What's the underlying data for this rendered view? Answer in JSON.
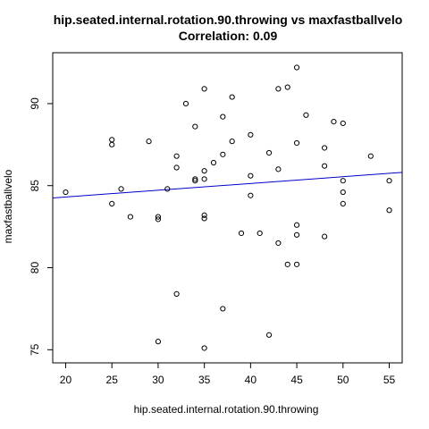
{
  "chart_data": {
    "type": "scatter",
    "title": "hip.seated.internal.rotation.90.throwing vs maxfastballvelo",
    "subtitle": "Correlation: 0.09",
    "xlabel": "hip.seated.internal.rotation.90.throwing",
    "ylabel": "maxfastballvelo",
    "xlim": [
      18.6,
      56.4
    ],
    "ylim": [
      74.2,
      93.1
    ],
    "x_ticks": [
      20,
      25,
      30,
      35,
      40,
      45,
      50,
      55
    ],
    "y_ticks": [
      75,
      80,
      85,
      90
    ],
    "grid": false,
    "colors": {
      "points": "#000000",
      "trend_line": "#0000cc",
      "frame": "#000000"
    },
    "trend_line": {
      "x": [
        18.6,
        56.4
      ],
      "y": [
        84.25,
        85.81
      ]
    },
    "points": [
      {
        "x": 20,
        "y": 84.6
      },
      {
        "x": 25,
        "y": 87.8
      },
      {
        "x": 25,
        "y": 87.5
      },
      {
        "x": 25,
        "y": 83.9
      },
      {
        "x": 26,
        "y": 84.8
      },
      {
        "x": 27,
        "y": 83.1
      },
      {
        "x": 29,
        "y": 87.7
      },
      {
        "x": 30,
        "y": 83.1
      },
      {
        "x": 30,
        "y": 82.95
      },
      {
        "x": 30,
        "y": 75.5
      },
      {
        "x": 31,
        "y": 84.8
      },
      {
        "x": 32,
        "y": 86.8
      },
      {
        "x": 32,
        "y": 86.1
      },
      {
        "x": 32,
        "y": 78.4
      },
      {
        "x": 33,
        "y": 90.0
      },
      {
        "x": 34,
        "y": 88.6
      },
      {
        "x": 34,
        "y": 85.4
      },
      {
        "x": 34,
        "y": 85.3
      },
      {
        "x": 35,
        "y": 90.9
      },
      {
        "x": 35,
        "y": 85.9
      },
      {
        "x": 35,
        "y": 85.4
      },
      {
        "x": 35,
        "y": 83.2
      },
      {
        "x": 35,
        "y": 83.0
      },
      {
        "x": 35,
        "y": 75.1
      },
      {
        "x": 36,
        "y": 86.4
      },
      {
        "x": 37,
        "y": 89.2
      },
      {
        "x": 37,
        "y": 86.9
      },
      {
        "x": 37,
        "y": 77.5
      },
      {
        "x": 38,
        "y": 90.4
      },
      {
        "x": 38,
        "y": 87.7
      },
      {
        "x": 39,
        "y": 82.1
      },
      {
        "x": 40,
        "y": 88.1
      },
      {
        "x": 40,
        "y": 85.6
      },
      {
        "x": 40,
        "y": 84.4
      },
      {
        "x": 41,
        "y": 82.1
      },
      {
        "x": 42,
        "y": 87.0
      },
      {
        "x": 42,
        "y": 75.9
      },
      {
        "x": 43,
        "y": 90.9
      },
      {
        "x": 43,
        "y": 86.0
      },
      {
        "x": 43,
        "y": 81.5
      },
      {
        "x": 44,
        "y": 91.0
      },
      {
        "x": 44,
        "y": 80.2
      },
      {
        "x": 45,
        "y": 92.2
      },
      {
        "x": 45,
        "y": 87.6
      },
      {
        "x": 45,
        "y": 82.6
      },
      {
        "x": 45,
        "y": 82.0
      },
      {
        "x": 45,
        "y": 80.2
      },
      {
        "x": 46,
        "y": 89.3
      },
      {
        "x": 48,
        "y": 87.3
      },
      {
        "x": 48,
        "y": 86.2
      },
      {
        "x": 48,
        "y": 81.9
      },
      {
        "x": 49,
        "y": 88.9
      },
      {
        "x": 50,
        "y": 88.8
      },
      {
        "x": 50,
        "y": 85.3
      },
      {
        "x": 50,
        "y": 84.6
      },
      {
        "x": 50,
        "y": 83.9
      },
      {
        "x": 53,
        "y": 86.8
      },
      {
        "x": 55,
        "y": 85.3
      },
      {
        "x": 55,
        "y": 83.5
      }
    ]
  }
}
